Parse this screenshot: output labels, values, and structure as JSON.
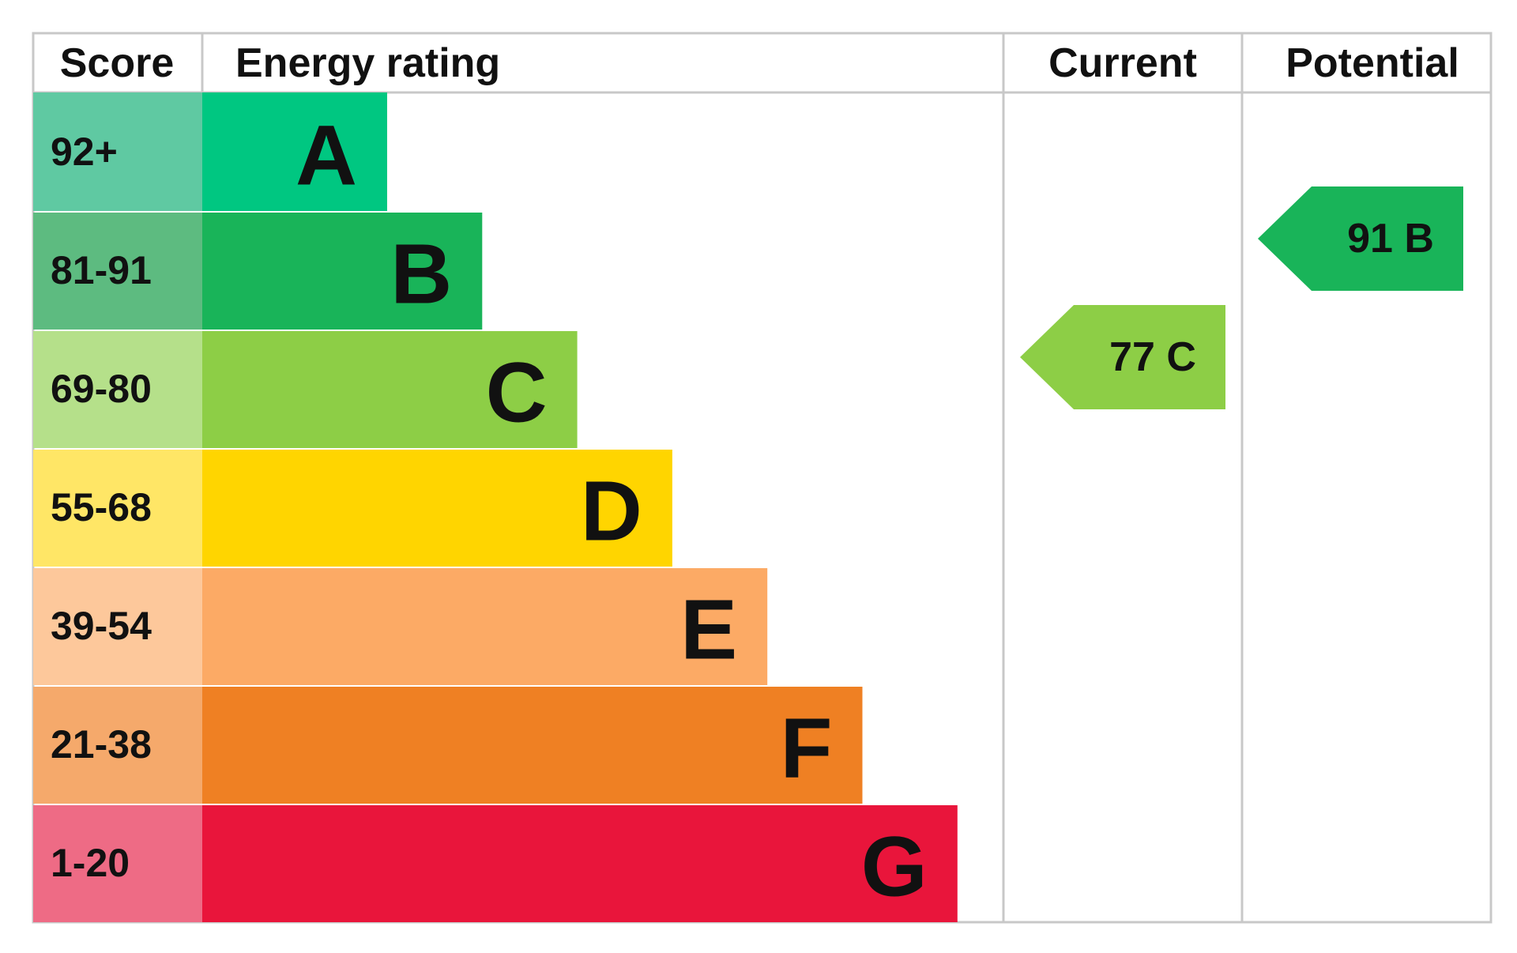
{
  "header": {
    "score": "Score",
    "energy_rating": "Energy rating",
    "current": "Current",
    "potential": "Potential"
  },
  "bands": [
    {
      "score": "92+",
      "letter": "A",
      "color": "#00c781",
      "score_color": "#5fc9a2"
    },
    {
      "score": "81-91",
      "letter": "B",
      "color": "#19b459",
      "score_color": "#5dbb80"
    },
    {
      "score": "69-80",
      "letter": "C",
      "color": "#8dce46",
      "score_color": "#b5e08a"
    },
    {
      "score": "55-68",
      "letter": "D",
      "color": "#ffd500",
      "score_color": "#ffe666"
    },
    {
      "score": "39-54",
      "letter": "E",
      "color": "#fcaa65",
      "score_color": "#fdc89b"
    },
    {
      "score": "21-38",
      "letter": "F",
      "color": "#ef8023",
      "score_color": "#f5a96b"
    },
    {
      "score": "1-20",
      "letter": "G",
      "color": "#e9153b",
      "score_color": "#ee6b85"
    }
  ],
  "current": {
    "label": "77 C"
  },
  "potential": {
    "label": "91 B"
  }
}
